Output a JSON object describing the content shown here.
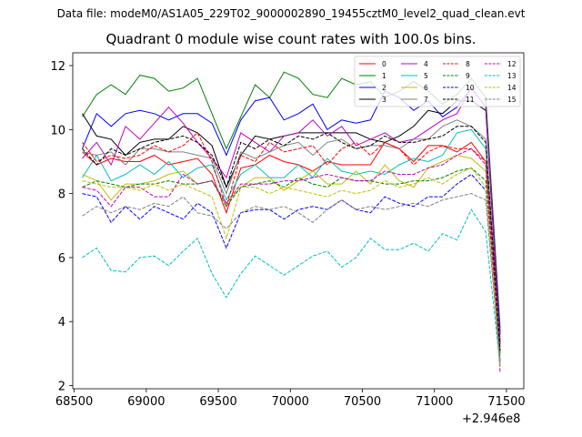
{
  "suptitle": "Data file: modeM0/AS1A05_229T02_9000002890_19455cztM0_level2_quad_clean.evt",
  "chart_data": {
    "type": "line",
    "title": "Quadrant 0 module wise count rates with 100.0s bins.",
    "xlabel": "",
    "ylabel": "",
    "x_offset_label": "+2.946e8",
    "xlim": [
      68490,
      71620
    ],
    "ylim": [
      1.9,
      12.4
    ],
    "xticks": [
      68500,
      69000,
      69500,
      70000,
      70500,
      71000,
      71500
    ],
    "yticks": [
      2,
      4,
      6,
      8,
      10,
      12
    ],
    "grid": false,
    "legend_position": "top-right",
    "x": [
      68556,
      68656,
      68756,
      68856,
      68956,
      69056,
      69156,
      69256,
      69356,
      69456,
      69556,
      69656,
      69756,
      69856,
      69956,
      70056,
      70156,
      70256,
      70356,
      70456,
      70556,
      70656,
      70756,
      70856,
      70956,
      71056,
      71156,
      71256,
      71356,
      71456
    ],
    "series": [
      {
        "name": "0",
        "color": "#ff0000",
        "dash": "solid",
        "values": [
          9.3,
          8.9,
          9.1,
          9.0,
          9.0,
          9.2,
          8.9,
          9.0,
          9.1,
          8.6,
          7.4,
          8.8,
          8.9,
          9.2,
          9.0,
          8.9,
          8.7,
          9.0,
          8.9,
          8.9,
          8.9,
          9.6,
          9.4,
          9.0,
          9.5,
          9.5,
          9.3,
          9.6,
          9.0,
          3.7
        ]
      },
      {
        "name": "1",
        "color": "#008000",
        "dash": "solid",
        "values": [
          10.4,
          11.1,
          11.4,
          11.1,
          11.7,
          11.6,
          11.2,
          11.3,
          11.6,
          10.5,
          9.4,
          10.4,
          11.4,
          11.0,
          11.8,
          11.6,
          11.1,
          11.0,
          11.6,
          11.4,
          11.5,
          11.0,
          11.2,
          11.5,
          11.2,
          10.8,
          11.1,
          11.6,
          11.0,
          3.8
        ]
      },
      {
        "name": "2",
        "color": "#0000ff",
        "dash": "solid",
        "values": [
          9.4,
          10.5,
          10.1,
          10.5,
          10.6,
          10.5,
          10.3,
          10.5,
          10.5,
          10.2,
          9.2,
          10.3,
          10.9,
          11.0,
          10.3,
          10.5,
          10.8,
          10.0,
          10.3,
          10.2,
          10.3,
          11.2,
          11.0,
          10.6,
          10.9,
          10.4,
          10.7,
          11.3,
          10.7,
          3.6
        ]
      },
      {
        "name": "3",
        "color": "#000000",
        "dash": "solid",
        "values": [
          10.5,
          9.8,
          9.7,
          9.2,
          9.6,
          9.7,
          9.7,
          10.1,
          9.9,
          9.5,
          8.2,
          9.2,
          9.8,
          9.7,
          9.8,
          9.9,
          9.9,
          9.9,
          9.9,
          9.9,
          9.7,
          9.6,
          9.8,
          10.1,
          10.6,
          10.5,
          10.9,
          10.9,
          10.6,
          3.3
        ]
      },
      {
        "name": "4",
        "color": "#bf00bf",
        "dash": "solid",
        "values": [
          9.1,
          9.6,
          8.9,
          10.1,
          9.7,
          10.2,
          10.7,
          10.2,
          9.6,
          9.1,
          8.5,
          9.9,
          9.6,
          9.3,
          9.8,
          9.9,
          10.3,
          9.8,
          10.1,
          9.5,
          9.7,
          9.9,
          9.6,
          9.7,
          10.0,
          10.3,
          10.5,
          11.3,
          10.7,
          3.4
        ]
      },
      {
        "name": "5",
        "color": "#00bfbf",
        "dash": "solid",
        "values": [
          8.5,
          9.2,
          8.4,
          8.6,
          8.9,
          8.6,
          9.0,
          8.5,
          8.8,
          8.9,
          7.8,
          8.6,
          8.9,
          8.5,
          8.5,
          8.9,
          8.5,
          9.1,
          8.7,
          8.6,
          8.7,
          8.6,
          8.9,
          9.1,
          9.0,
          9.2,
          9.9,
          10.0,
          9.4,
          3.0
        ]
      },
      {
        "name": "6",
        "color": "#bfbf00",
        "dash": "solid",
        "values": [
          8.6,
          8.4,
          7.8,
          8.3,
          8.3,
          8.4,
          8.6,
          8.7,
          8.3,
          8.4,
          7.7,
          8.2,
          8.5,
          8.5,
          8.1,
          8.4,
          8.7,
          8.3,
          8.3,
          8.7,
          8.3,
          8.9,
          8.4,
          8.2,
          8.8,
          9.0,
          9.2,
          9.1,
          8.7,
          2.9
        ]
      },
      {
        "name": "7",
        "color": "#808080",
        "dash": "solid",
        "values": [
          9.3,
          9.2,
          9.3,
          8.9,
          9.4,
          9.4,
          9.3,
          9.3,
          9.2,
          9.1,
          8.0,
          9.3,
          9.1,
          9.3,
          9.5,
          9.6,
          9.2,
          9.6,
          9.7,
          9.4,
          9.5,
          9.5,
          9.4,
          9.7,
          9.7,
          10.1,
          10.3,
          10.1,
          9.7,
          3.1
        ]
      },
      {
        "name": "8",
        "color": "#ff0000",
        "dash": "dashed",
        "values": [
          9.6,
          9.0,
          9.2,
          9.1,
          9.2,
          9.5,
          9.3,
          9.5,
          9.9,
          9.0,
          7.6,
          9.2,
          9.0,
          9.6,
          9.3,
          9.4,
          9.5,
          8.9,
          9.4,
          9.6,
          9.2,
          9.6,
          9.4,
          8.9,
          9.3,
          9.5,
          9.4,
          9.4,
          9.0,
          3.0
        ]
      },
      {
        "name": "9",
        "color": "#008000",
        "dash": "dashed",
        "values": [
          8.2,
          8.4,
          8.3,
          8.2,
          8.3,
          8.3,
          8.4,
          8.3,
          8.3,
          8.4,
          7.6,
          8.2,
          8.3,
          8.4,
          8.2,
          8.5,
          8.3,
          8.2,
          8.5,
          8.4,
          8.4,
          8.3,
          8.3,
          8.4,
          8.4,
          8.5,
          8.7,
          8.8,
          8.4,
          2.8
        ]
      },
      {
        "name": "10",
        "color": "#0000ff",
        "dash": "dashed",
        "values": [
          8.0,
          7.9,
          7.1,
          7.6,
          7.2,
          7.6,
          7.4,
          7.2,
          7.7,
          7.4,
          6.3,
          7.4,
          7.5,
          7.5,
          7.2,
          7.5,
          7.6,
          7.5,
          7.8,
          7.5,
          7.4,
          7.9,
          7.7,
          7.6,
          7.9,
          7.9,
          8.3,
          8.6,
          8.1,
          2.7
        ]
      },
      {
        "name": "11",
        "color": "#000000",
        "dash": "dashed",
        "values": [
          9.4,
          8.9,
          9.4,
          9.2,
          9.4,
          9.6,
          9.7,
          9.8,
          9.6,
          9.2,
          8.2,
          9.6,
          9.4,
          9.7,
          9.5,
          9.8,
          9.7,
          9.9,
          9.6,
          9.4,
          9.5,
          9.8,
          9.6,
          9.6,
          9.7,
          9.8,
          10.1,
          10.1,
          9.6,
          3.1
        ]
      },
      {
        "name": "12",
        "color": "#bf00bf",
        "dash": "dashed",
        "values": [
          8.2,
          8.1,
          7.6,
          8.2,
          8.2,
          7.9,
          7.9,
          8.6,
          8.3,
          8.4,
          7.7,
          8.3,
          8.3,
          8.3,
          8.4,
          8.4,
          8.5,
          8.6,
          8.5,
          8.4,
          8.4,
          8.7,
          8.6,
          8.6,
          8.8,
          8.9,
          9.2,
          9.4,
          8.9,
          2.4
        ]
      },
      {
        "name": "13",
        "color": "#00bfbf",
        "dash": "dashed",
        "values": [
          6.0,
          6.3,
          5.6,
          5.55,
          6.0,
          6.05,
          5.75,
          6.2,
          6.6,
          5.5,
          4.75,
          5.5,
          6.05,
          5.75,
          5.45,
          5.75,
          6.05,
          6.2,
          5.7,
          6.0,
          6.6,
          6.25,
          6.25,
          6.45,
          6.2,
          6.75,
          6.55,
          7.5,
          6.8,
          2.6
        ]
      },
      {
        "name": "14",
        "color": "#bfbf00",
        "dash": "dashed",
        "values": [
          8.4,
          8.3,
          8.2,
          8.2,
          8.1,
          8.3,
          8.1,
          8.3,
          8.1,
          7.9,
          6.6,
          8.2,
          8.2,
          8.0,
          8.2,
          8.1,
          8.0,
          7.9,
          8.1,
          8.0,
          8.1,
          8.4,
          8.2,
          8.3,
          8.5,
          8.3,
          8.6,
          8.8,
          8.2,
          2.6
        ]
      },
      {
        "name": "15",
        "color": "#808080",
        "dash": "dashed",
        "values": [
          7.3,
          7.6,
          7.4,
          7.6,
          7.5,
          7.7,
          7.6,
          7.9,
          7.4,
          7.3,
          6.9,
          7.4,
          7.6,
          7.5,
          7.6,
          7.4,
          7.1,
          7.5,
          7.8,
          7.5,
          7.6,
          7.5,
          7.6,
          7.7,
          7.6,
          7.8,
          7.9,
          8.0,
          7.8,
          2.7
        ]
      }
    ]
  }
}
